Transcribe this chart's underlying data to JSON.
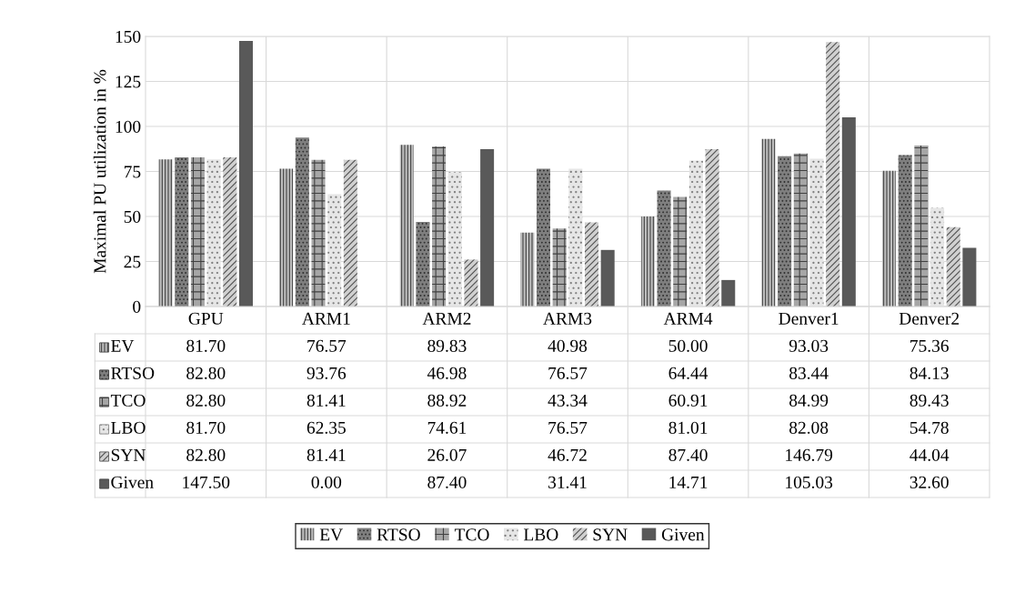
{
  "chart_data": {
    "type": "bar",
    "ylabel": "Maximal PU utilization in %",
    "categories": [
      "GPU",
      "ARM1",
      "ARM2",
      "ARM3",
      "ARM4",
      "Denver1",
      "Denver2"
    ],
    "series": [
      {
        "name": "EV",
        "color": "#bfbfbf",
        "values": [
          81.7,
          76.57,
          89.83,
          40.98,
          50.0,
          93.03,
          75.36
        ],
        "value_labels": [
          "81.70",
          "76.57",
          "89.83",
          "40.98",
          "50.00",
          "93.03",
          "75.36"
        ]
      },
      {
        "name": "RTSO",
        "color": "#7f7f7f",
        "values": [
          82.8,
          93.76,
          46.98,
          76.57,
          64.44,
          83.44,
          84.13
        ],
        "value_labels": [
          "82.80",
          "93.76",
          "46.98",
          "76.57",
          "64.44",
          "83.44",
          "84.13"
        ]
      },
      {
        "name": "TCO",
        "color": "#a6a6a6",
        "values": [
          82.8,
          81.41,
          88.92,
          43.34,
          60.91,
          84.99,
          89.43
        ],
        "value_labels": [
          "82.80",
          "81.41",
          "88.92",
          "43.34",
          "60.91",
          "84.99",
          "89.43"
        ]
      },
      {
        "name": "LBO",
        "color": "#e6e6e6",
        "values": [
          81.7,
          62.35,
          74.61,
          76.57,
          81.01,
          82.08,
          54.78
        ],
        "value_labels": [
          "81.70",
          "62.35",
          "74.61",
          "76.57",
          "81.01",
          "82.08",
          "54.78"
        ]
      },
      {
        "name": "SYN",
        "color": "#d0d0d0",
        "values": [
          82.8,
          81.41,
          26.07,
          46.72,
          87.4,
          146.79,
          44.04
        ],
        "value_labels": [
          "82.80",
          "81.41",
          "26.07",
          "46.72",
          "87.40",
          "146.79",
          "44.04"
        ]
      },
      {
        "name": "Given",
        "color": "#595959",
        "values": [
          147.5,
          0.0,
          87.4,
          31.41,
          14.71,
          105.03,
          32.6
        ],
        "value_labels": [
          "147.50",
          "0.00",
          "87.40",
          "31.41",
          "14.71",
          "105.03",
          "32.60"
        ]
      }
    ],
    "ylim": [
      0,
      150
    ],
    "yticks": [
      0,
      25,
      50,
      75,
      100,
      125,
      150
    ],
    "grid": true,
    "legend": "bottom"
  }
}
